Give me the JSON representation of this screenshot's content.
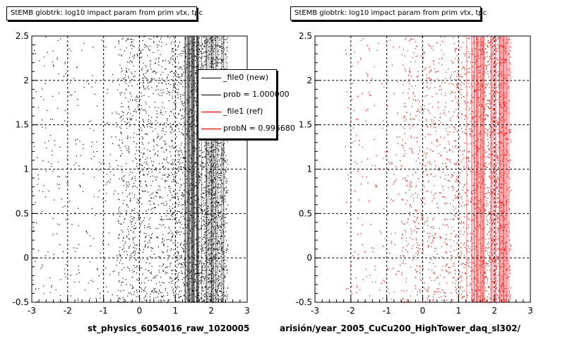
{
  "chart_data": [
    {
      "type": "scatter",
      "title": "StEMB globtrk: log10 impact param from prim vtx, tpc",
      "xlabel": "st_physics_6054016_raw_1020005",
      "ylabel": "",
      "xlim": [
        -3,
        3
      ],
      "ylim": [
        -0.5,
        2.5
      ],
      "xticks": [
        "-3",
        "-2",
        "-1",
        "0",
        "1",
        "2",
        "3"
      ],
      "yticks": [
        "-0.5",
        "0",
        "0.5",
        "1",
        "1.5",
        "2",
        "2.5"
      ],
      "grid": true,
      "legend_position": "top-right",
      "series": [
        {
          "name": "_file0 (new)",
          "color": "#000000",
          "x_range": [
            -3.0,
            2.45
          ],
          "x_bulk": [
            -0.6,
            2.35
          ],
          "x_peak": 2.1
        }
      ],
      "legend": [
        {
          "label": "_file0 (new)",
          "color": "#000000"
        },
        {
          "label": "prob = 1.000000",
          "color": "#000000"
        },
        {
          "label": "_file1 (ref)",
          "color": "#ff0000"
        },
        {
          "label": "probN = 0.995680",
          "color": "#ff0000"
        }
      ]
    },
    {
      "type": "scatter",
      "title": "StEMB globtrk: log10 impact param from prim vtx, tpc",
      "xlabel": "arisión/year_2005_CuCu200_HighTower_daq_sl302/",
      "ylabel": "",
      "xlim": [
        -3,
        3
      ],
      "ylim": [
        -0.5,
        2.5
      ],
      "xticks": [
        "-3",
        "-2",
        "-1",
        "0",
        "1",
        "2",
        "3"
      ],
      "yticks": [
        "-0.5",
        "0",
        "0.5",
        "1",
        "1.5",
        "2",
        "2.5"
      ],
      "grid": true,
      "series": [
        {
          "name": "_file1 (ref)",
          "color": "#ff0000",
          "x_range": [
            -2.2,
            2.45
          ],
          "x_bulk": [
            -0.6,
            2.35
          ],
          "x_peak": 2.1
        }
      ]
    }
  ]
}
